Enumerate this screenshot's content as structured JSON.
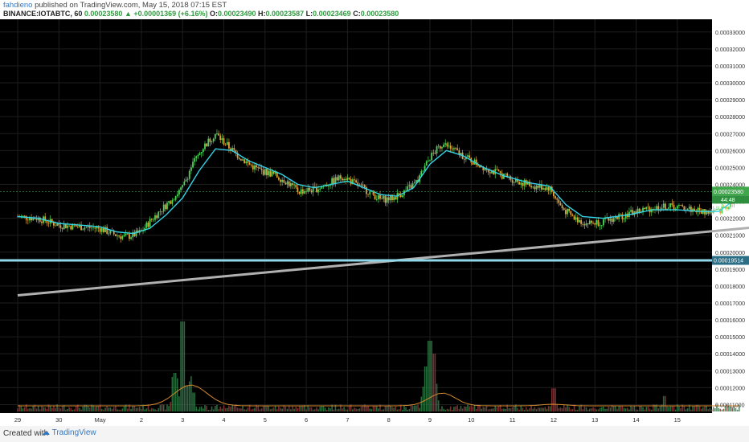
{
  "header": {
    "user": "fahdieno",
    "published": "published on TradingView.com, May 15, 2018 07:15 EST",
    "symbol": "BINANCE:IOTABTC, 60",
    "last": "0.00023580",
    "change": "+0.00001369 (+6.16%)",
    "o_label": "O:",
    "o": "0.00023490",
    "h_label": "H:",
    "h": "0.00023587",
    "l_label": "L:",
    "l": "0.00023469",
    "c_label": "C:",
    "c": "0.00023580"
  },
  "footer": {
    "created": "Created with",
    "brand": "TradingView"
  },
  "colors": {
    "background": "#000000",
    "grid": "#1e1e1e",
    "up": "#4fd35a",
    "down": "#e0a33c",
    "ma": "#33d2e6",
    "support": "#b0b0b0",
    "hline": "#8fd8ea",
    "price_badge": "#3ea84a",
    "hline_badge": "#2a6f86",
    "volume_ma": "#d68a2a"
  },
  "chart_data": {
    "type": "candlestick",
    "yaxis": {
      "min": 0.000105,
      "max": 0.0003375,
      "ticks": [
        "0.00011000",
        "0.00012000",
        "0.00013000",
        "0.00014000",
        "0.00015000",
        "0.00016000",
        "0.00017000",
        "0.00018000",
        "0.00019000",
        "0.00020000",
        "0.00021000",
        "0.00022000",
        "0.00023000",
        "0.00024000",
        "0.00025000",
        "0.00026000",
        "0.00027000",
        "0.00028000",
        "0.00029000",
        "0.00030000",
        "0.00031000",
        "0.00032000",
        "0.00033000"
      ]
    },
    "xaxis": {
      "labels": [
        "29",
        "30",
        "May",
        "2",
        "3",
        "4",
        "5",
        "6",
        "7",
        "8",
        "9",
        "10",
        "11",
        "12",
        "13",
        "14",
        "15"
      ]
    },
    "price_label": "0.00023580",
    "price_sub": "44:48",
    "hline_label": "0.00019514",
    "hline_value": 0.00019514,
    "support_line": [
      [
        0.0,
        0.0001745
      ],
      [
        17.8,
        0.0002145
      ]
    ],
    "close_path": [
      [
        0.0,
        0.000221
      ],
      [
        0.5,
        0.00022
      ],
      [
        1.0,
        0.000216
      ],
      [
        1.5,
        0.000215
      ],
      [
        2.0,
        0.000214
      ],
      [
        2.4,
        0.00021
      ],
      [
        2.6,
        0.000209
      ],
      [
        2.8,
        0.00021
      ],
      [
        3.0,
        0.000212
      ],
      [
        3.2,
        0.000218
      ],
      [
        3.6,
        0.000228
      ],
      [
        4.0,
        0.000238
      ],
      [
        4.2,
        0.00025
      ],
      [
        4.5,
        0.000262
      ],
      [
        4.8,
        0.00027
      ],
      [
        5.0,
        0.000265
      ],
      [
        5.3,
        0.000258
      ],
      [
        5.6,
        0.000252
      ],
      [
        5.9,
        0.000248
      ],
      [
        6.2,
        0.000246
      ],
      [
        6.5,
        0.000242
      ],
      [
        6.8,
        0.000236
      ],
      [
        7.2,
        0.000237
      ],
      [
        7.5,
        0.00024
      ],
      [
        7.9,
        0.000245
      ],
      [
        8.2,
        0.00024
      ],
      [
        8.5,
        0.000236
      ],
      [
        8.8,
        0.000231
      ],
      [
        9.1,
        0.000232
      ],
      [
        9.4,
        0.000236
      ],
      [
        9.7,
        0.000242
      ],
      [
        10.0,
        0.000256
      ],
      [
        10.3,
        0.000264
      ],
      [
        10.6,
        0.00026
      ],
      [
        11.0,
        0.000254
      ],
      [
        11.5,
        0.000248
      ],
      [
        12.0,
        0.000243
      ],
      [
        12.5,
        0.000239
      ],
      [
        12.9,
        0.000238
      ],
      [
        13.2,
        0.000226
      ],
      [
        13.5,
        0.00022
      ],
      [
        13.8,
        0.000217
      ],
      [
        14.2,
        0.000218
      ],
      [
        14.6,
        0.000221
      ],
      [
        15.0,
        0.000224
      ],
      [
        15.4,
        0.000226
      ],
      [
        15.8,
        0.000227
      ],
      [
        16.2,
        0.000226
      ],
      [
        16.6,
        0.000224
      ],
      [
        17.0,
        0.000224
      ],
      [
        17.3,
        0.000229
      ],
      [
        17.5,
        0.000236
      ]
    ],
    "ma_path": [
      [
        0.0,
        0.000221
      ],
      [
        0.5,
        0.00022
      ],
      [
        1.0,
        0.000217
      ],
      [
        1.5,
        0.000216
      ],
      [
        2.0,
        0.000215
      ],
      [
        2.4,
        0.000212
      ],
      [
        2.8,
        0.000211
      ],
      [
        3.2,
        0.000214
      ],
      [
        3.6,
        0.000222
      ],
      [
        4.0,
        0.000232
      ],
      [
        4.4,
        0.000248
      ],
      [
        4.8,
        0.000261
      ],
      [
        5.2,
        0.00026
      ],
      [
        5.6,
        0.000254
      ],
      [
        6.0,
        0.00025
      ],
      [
        6.4,
        0.000246
      ],
      [
        6.8,
        0.00024
      ],
      [
        7.2,
        0.000238
      ],
      [
        7.6,
        0.00024
      ],
      [
        8.0,
        0.000242
      ],
      [
        8.4,
        0.000238
      ],
      [
        8.8,
        0.000234
      ],
      [
        9.2,
        0.000233
      ],
      [
        9.6,
        0.000238
      ],
      [
        10.0,
        0.000252
      ],
      [
        10.4,
        0.00026
      ],
      [
        10.8,
        0.000257
      ],
      [
        11.3,
        0.00025
      ],
      [
        11.8,
        0.000245
      ],
      [
        12.4,
        0.000241
      ],
      [
        12.9,
        0.000239
      ],
      [
        13.3,
        0.000228
      ],
      [
        13.7,
        0.000221
      ],
      [
        14.2,
        0.00022
      ],
      [
        14.8,
        0.000222
      ],
      [
        15.4,
        0.000225
      ],
      [
        16.0,
        0.000225
      ],
      [
        16.6,
        0.000224
      ],
      [
        17.0,
        0.000224
      ],
      [
        17.4,
        0.000231
      ]
    ],
    "volume_spikes": [
      [
        4.0,
        0.7
      ],
      [
        10.0,
        0.55
      ],
      [
        10.1,
        0.45
      ],
      [
        9.9,
        0.35
      ],
      [
        3.8,
        0.3
      ],
      [
        4.1,
        0.2
      ],
      [
        13.0,
        0.18
      ],
      [
        15.7,
        0.12
      ]
    ]
  }
}
